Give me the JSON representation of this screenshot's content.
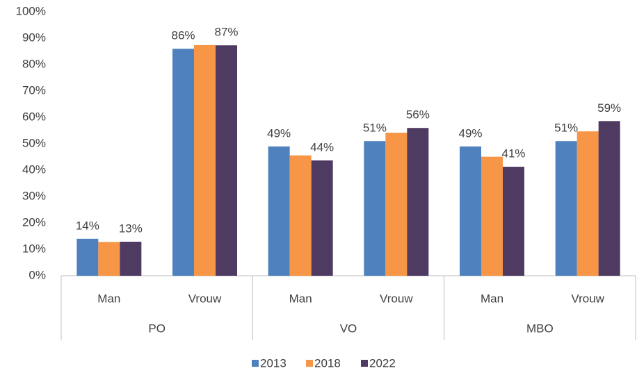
{
  "chart_data": {
    "type": "bar",
    "categories": [
      "Man",
      "Vrouw",
      "Man",
      "Vrouw",
      "Man",
      "Vrouw"
    ],
    "groups": [
      "PO",
      "VO",
      "MBO"
    ],
    "series": [
      {
        "name": "2013",
        "color": "#4e81bd",
        "values": [
          14,
          86,
          49,
          51,
          49,
          51
        ],
        "value_labels": [
          "14%",
          "86%",
          "49%",
          "51%",
          "49%",
          "51%"
        ]
      },
      {
        "name": "2018",
        "color": "#f79646",
        "values": [
          12.8,
          87.4,
          45.6,
          54.2,
          45.1,
          54.7
        ],
        "value_labels": [
          null,
          null,
          null,
          null,
          null,
          null
        ]
      },
      {
        "name": "2022",
        "color": "#4f3b62",
        "values": [
          12.9,
          87.3,
          43.7,
          56,
          41.3,
          58.6
        ],
        "value_labels": [
          "13%",
          "87%",
          "44%",
          "56%",
          "41%",
          "59%"
        ]
      }
    ],
    "ylim": [
      0,
      100
    ],
    "yticks": [
      {
        "value": 0,
        "label": "0%"
      },
      {
        "value": 10,
        "label": "10%"
      },
      {
        "value": 20,
        "label": "20%"
      },
      {
        "value": 30,
        "label": "30%"
      },
      {
        "value": 40,
        "label": "40%"
      },
      {
        "value": 50,
        "label": "50%"
      },
      {
        "value": 60,
        "label": "60%"
      },
      {
        "value": 70,
        "label": "70%"
      },
      {
        "value": 80,
        "label": "80%"
      },
      {
        "value": 90,
        "label": "90%"
      },
      {
        "value": 100,
        "label": "100%"
      }
    ],
    "grid": false,
    "legend": "bottom"
  }
}
